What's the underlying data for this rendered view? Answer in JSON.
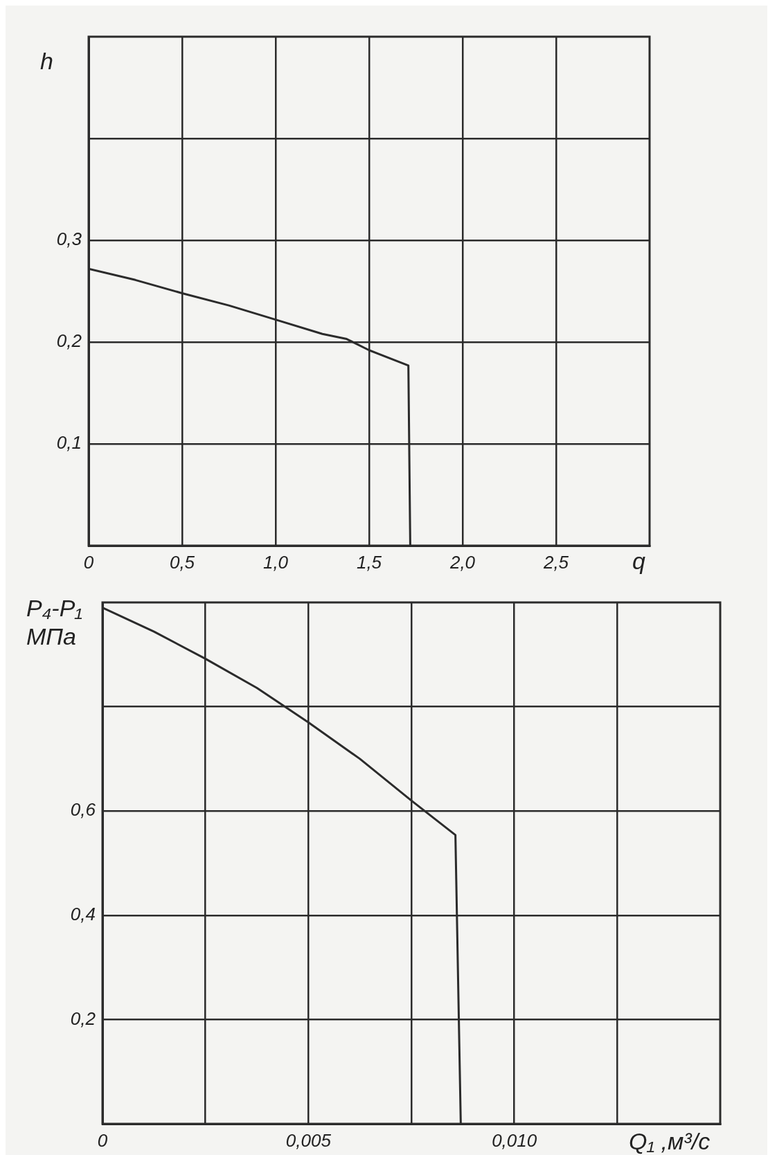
{
  "chart_data": [
    {
      "type": "line",
      "ylabel": "h",
      "xlabel": "q",
      "x": [
        0,
        0.25,
        0.5,
        0.75,
        1.0,
        1.25,
        1.38,
        1.5,
        1.71,
        1.72
      ],
      "values": [
        0.272,
        0.261,
        0.248,
        0.236,
        0.222,
        0.208,
        0.203,
        0.192,
        0.177,
        0
      ],
      "color": "#2b2b2b",
      "xlim": [
        0,
        3
      ],
      "xticks": [
        0,
        {
          "value": 0.5,
          "label": "0,5"
        },
        {
          "value": 1,
          "label": "1,0"
        },
        {
          "value": 1.5,
          "label": "1,5"
        },
        {
          "value": 2,
          "label": "2,0"
        },
        {
          "value": 2.5,
          "label": "2,5"
        }
      ],
      "ylim": [
        0,
        0.5
      ],
      "yticks": [
        {
          "value": 0,
          "label": null
        },
        {
          "value": 0.1,
          "label": "0,1"
        },
        {
          "value": 0.2,
          "label": "0,2"
        },
        {
          "value": 0.3,
          "label": "0,3"
        },
        {
          "value": 0.4,
          "label": null
        }
      ],
      "grid": true,
      "legend": false,
      "marker": "none",
      "line_style": "solid"
    },
    {
      "type": "line",
      "ylabel": "P₄-P₁ МПа",
      "xlabel": "Q₁ ,м³/с",
      "x": [
        0,
        0.00125,
        0.0025,
        0.00375,
        0.005,
        0.00625,
        0.0075,
        0.00857,
        0.0087
      ],
      "values": [
        0.99,
        0.944,
        0.892,
        0.836,
        0.77,
        0.7,
        0.62,
        0.554,
        0
      ],
      "color": "#2b2b2b",
      "xlim": [
        0,
        0.015
      ],
      "xticks": [
        0,
        {
          "value": 0.0025,
          "label": null
        },
        {
          "value": 0.005,
          "label": "0,005"
        },
        {
          "value": 0.0075,
          "label": null
        },
        {
          "value": 0.01,
          "label": "0,010"
        },
        {
          "value": 0.0125,
          "label": null
        }
      ],
      "ylim": [
        0,
        1
      ],
      "yticks": [
        {
          "value": 0,
          "label": null
        },
        {
          "value": 0.2,
          "label": "0,2"
        },
        {
          "value": 0.4,
          "label": "0,4"
        },
        {
          "value": 0.6,
          "label": "0,6"
        },
        {
          "value": 0.8,
          "label": null
        }
      ],
      "grid": true,
      "legend": false,
      "marker": "none",
      "line_style": "solid"
    }
  ]
}
